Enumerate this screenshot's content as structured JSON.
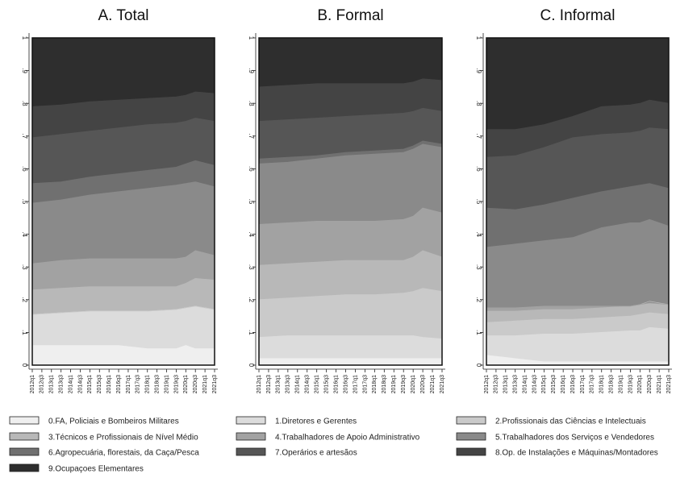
{
  "chart_data": {
    "type": "area",
    "stacked": true,
    "ylim": [
      0,
      1
    ],
    "yticks": [
      "0",
      ".1",
      ".2",
      ".3",
      ".4",
      ".5",
      ".6",
      ".7",
      ".8",
      ".9",
      "1"
    ],
    "xticks": [
      "2012q1",
      "2012q3",
      "2013q1",
      "2013q3",
      "2014q1",
      "2014q3",
      "2015q1",
      "2015q3",
      "2016q1",
      "2016q3",
      "2017q1",
      "2017q3",
      "2018q1",
      "2018q3",
      "2019q1",
      "2019q3",
      "2020q1",
      "2020q3",
      "2021q1",
      "2021q3"
    ],
    "x_knots": [
      "2012q1",
      "2013q3",
      "2015q1",
      "2016q3",
      "2018q1",
      "2019q3",
      "2020q1",
      "2020q3",
      "2021q3"
    ],
    "categories": [
      {
        "name": "0.FA, Policiais e Bombeiros Militares",
        "color": "#efefef"
      },
      {
        "name": "1.Diretores e Gerentes",
        "color": "#dcdcdc"
      },
      {
        "name": "2.Profissionais das Ciências e Intelectuais",
        "color": "#cacaca"
      },
      {
        "name": "3.Técnicos e Profissionais de Nível Médio",
        "color": "#b8b8b8"
      },
      {
        "name": "4.Trabalhadores de Apoio Administrativo",
        "color": "#a2a2a2"
      },
      {
        "name": "5.Trabalhadores dos Serviços e Vendedores",
        "color": "#8a8a8a"
      },
      {
        "name": "6.Agropecuária, florestais, da Caça/Pesca",
        "color": "#707070"
      },
      {
        "name": "7.Operários e artesãos",
        "color": "#565656"
      },
      {
        "name": "8.Op. de Instalações e Máquinas/Montadores",
        "color": "#444444"
      },
      {
        "name": "9.Ocupaçoes Elementares",
        "color": "#2e2e2e"
      }
    ],
    "panels": [
      {
        "title": "A. Total",
        "cumulative": [
          [
            0.06,
            0.06,
            0.06,
            0.06,
            0.05,
            0.05,
            0.06,
            0.05,
            0.05
          ],
          [
            0.155,
            0.16,
            0.165,
            0.165,
            0.165,
            0.17,
            0.175,
            0.18,
            0.17
          ],
          [
            0.155,
            0.16,
            0.165,
            0.165,
            0.165,
            0.17,
            0.175,
            0.18,
            0.17
          ],
          [
            0.23,
            0.235,
            0.24,
            0.24,
            0.24,
            0.24,
            0.25,
            0.265,
            0.26
          ],
          [
            0.31,
            0.32,
            0.325,
            0.325,
            0.325,
            0.325,
            0.33,
            0.35,
            0.335
          ],
          [
            0.495,
            0.505,
            0.52,
            0.53,
            0.54,
            0.55,
            0.555,
            0.56,
            0.545
          ],
          [
            0.555,
            0.56,
            0.575,
            0.585,
            0.595,
            0.605,
            0.615,
            0.625,
            0.61
          ],
          [
            0.695,
            0.705,
            0.715,
            0.725,
            0.735,
            0.74,
            0.745,
            0.755,
            0.745
          ],
          [
            0.79,
            0.795,
            0.805,
            0.81,
            0.815,
            0.82,
            0.825,
            0.835,
            0.83
          ],
          [
            1,
            1,
            1,
            1,
            1,
            1,
            1,
            1,
            1
          ]
        ]
      },
      {
        "title": "B. Formal",
        "cumulative": [
          [
            0.02,
            0.02,
            0.02,
            0.02,
            0.02,
            0.02,
            0.02,
            0.02,
            0.02
          ],
          [
            0.085,
            0.09,
            0.09,
            0.09,
            0.09,
            0.09,
            0.09,
            0.085,
            0.08
          ],
          [
            0.2,
            0.205,
            0.21,
            0.215,
            0.215,
            0.22,
            0.225,
            0.235,
            0.225
          ],
          [
            0.305,
            0.31,
            0.315,
            0.32,
            0.32,
            0.32,
            0.33,
            0.35,
            0.33
          ],
          [
            0.43,
            0.435,
            0.44,
            0.44,
            0.44,
            0.445,
            0.455,
            0.48,
            0.465
          ],
          [
            0.615,
            0.62,
            0.63,
            0.64,
            0.645,
            0.65,
            0.66,
            0.675,
            0.665
          ],
          [
            0.63,
            0.635,
            0.64,
            0.65,
            0.655,
            0.66,
            0.67,
            0.685,
            0.675
          ],
          [
            0.745,
            0.75,
            0.755,
            0.76,
            0.765,
            0.77,
            0.775,
            0.785,
            0.775
          ],
          [
            0.85,
            0.855,
            0.86,
            0.86,
            0.86,
            0.86,
            0.865,
            0.875,
            0.87
          ],
          [
            1,
            1,
            1,
            1,
            1,
            1,
            1,
            1,
            1
          ]
        ]
      },
      {
        "title": "C. Informal",
        "cumulative": [
          [
            0.03,
            0.02,
            0.01,
            0.01,
            0.01,
            0.01,
            0.01,
            0.01,
            0.01
          ],
          [
            0.09,
            0.09,
            0.095,
            0.095,
            0.1,
            0.105,
            0.105,
            0.115,
            0.11
          ],
          [
            0.13,
            0.135,
            0.14,
            0.14,
            0.145,
            0.15,
            0.155,
            0.16,
            0.155
          ],
          [
            0.165,
            0.165,
            0.17,
            0.17,
            0.175,
            0.18,
            0.185,
            0.195,
            0.185
          ],
          [
            0.175,
            0.175,
            0.18,
            0.18,
            0.18,
            0.18,
            0.185,
            0.19,
            0.185
          ],
          [
            0.36,
            0.37,
            0.38,
            0.39,
            0.42,
            0.435,
            0.435,
            0.445,
            0.425
          ],
          [
            0.48,
            0.475,
            0.49,
            0.51,
            0.53,
            0.545,
            0.55,
            0.555,
            0.54
          ],
          [
            0.635,
            0.64,
            0.665,
            0.695,
            0.705,
            0.71,
            0.715,
            0.725,
            0.72
          ],
          [
            0.72,
            0.72,
            0.735,
            0.76,
            0.79,
            0.795,
            0.8,
            0.81,
            0.8
          ],
          [
            1,
            1,
            1,
            1,
            1,
            1,
            1,
            1,
            1
          ]
        ]
      }
    ]
  }
}
